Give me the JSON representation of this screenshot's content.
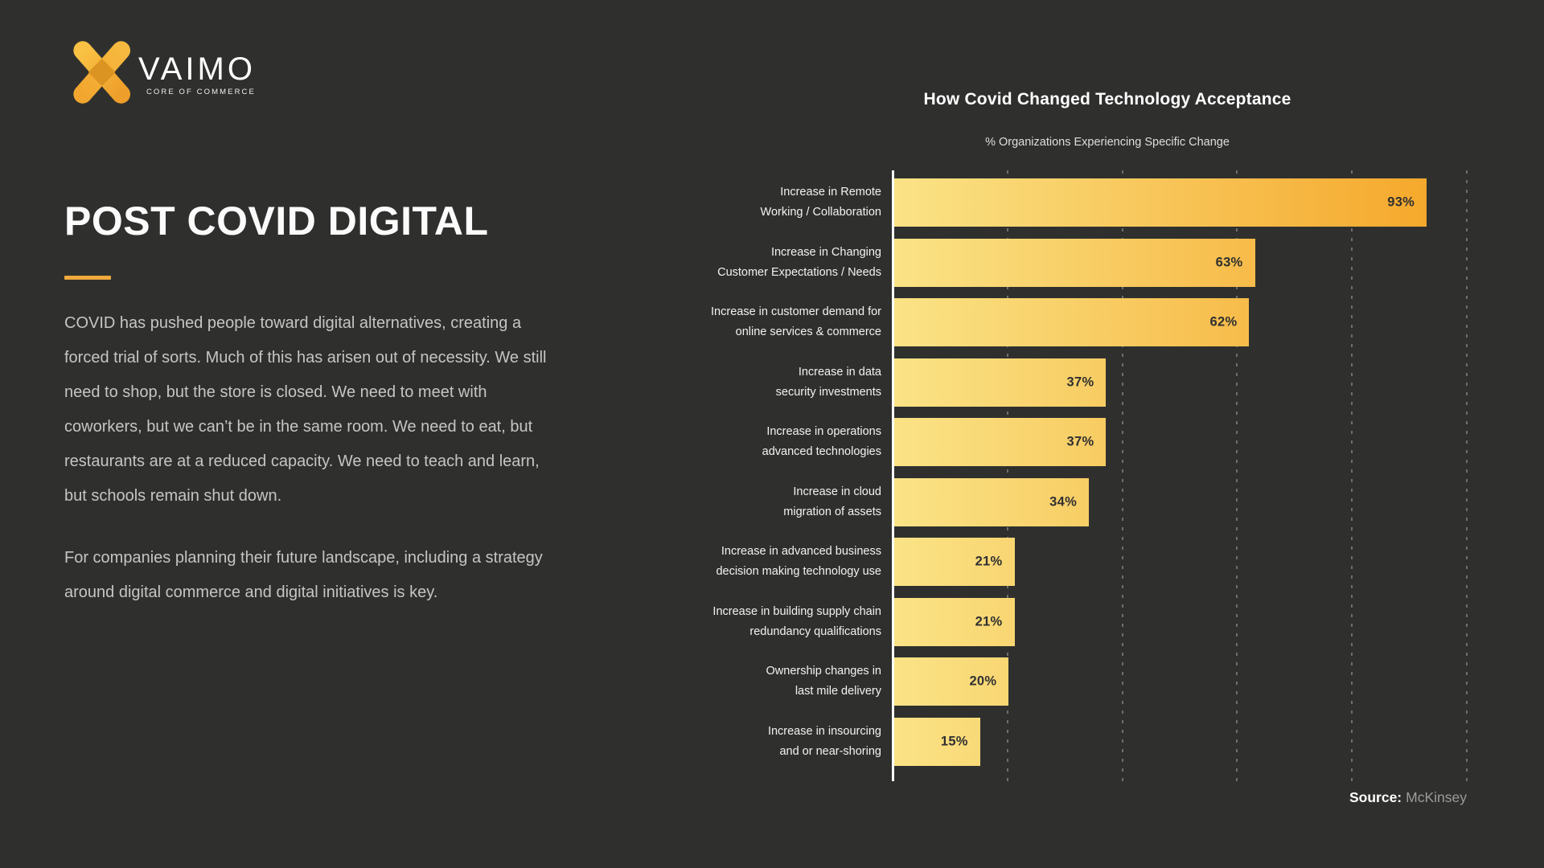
{
  "logo": {
    "brand": "VAIMO",
    "tagline": "CORE OF COMMERCE"
  },
  "left_panel": {
    "title": "POST COVID DIGITAL",
    "paragraph1": "COVID has pushed people toward digital alternatives, creating a forced trial of sorts. Much of this has arisen out of necessity. We still need to shop, but the store is closed. We need to meet with coworkers, but we can’t be in the same room. We need to eat, but restaurants are at a reduced capacity. We need to teach and learn, but schools remain shut down.",
    "paragraph2": "For companies planning their future landscape, including a strategy around digital commerce and digital initiatives is key."
  },
  "chart_data": {
    "type": "bar",
    "orientation": "horizontal",
    "title": "How Covid Changed Technology Acceptance",
    "subtitle": "% Organizations Experiencing Specific Change",
    "categories": [
      [
        "Increase in Remote",
        "Working / Collaboration"
      ],
      [
        "Increase in Changing",
        "Customer Expectations / Needs"
      ],
      [
        "Increase in customer demand for",
        "online services & commerce"
      ],
      [
        "Increase in data",
        "security investments"
      ],
      [
        "Increase in operations",
        "advanced technologies"
      ],
      [
        "Increase in cloud",
        "migration of assets"
      ],
      [
        "Increase in advanced business",
        "decision making technology use"
      ],
      [
        "Increase in building supply chain",
        "redundancy qualifications"
      ],
      [
        "Ownership changes in",
        "last mile delivery"
      ],
      [
        "Increase in insourcing",
        "and or near-shoring"
      ]
    ],
    "values": [
      93,
      63,
      62,
      37,
      37,
      34,
      21,
      21,
      20,
      15
    ],
    "value_suffix": "%",
    "xlim": [
      0,
      100
    ],
    "gridlines_pct": [
      20,
      40,
      60,
      80,
      100
    ],
    "grid_style": "dotted",
    "legend": "none",
    "bar_gradient": [
      "#FAE386",
      "#F5A425"
    ],
    "grid_color": "#6E6F6D",
    "axis_color": "#FFFFFF",
    "value_label_color": "#2F3030"
  },
  "source": {
    "label": "Source:",
    "value": "McKinsey"
  },
  "colors": {
    "background": "#2F302E",
    "accent": "#F0A93C",
    "body_text": "#C5C6C4"
  }
}
